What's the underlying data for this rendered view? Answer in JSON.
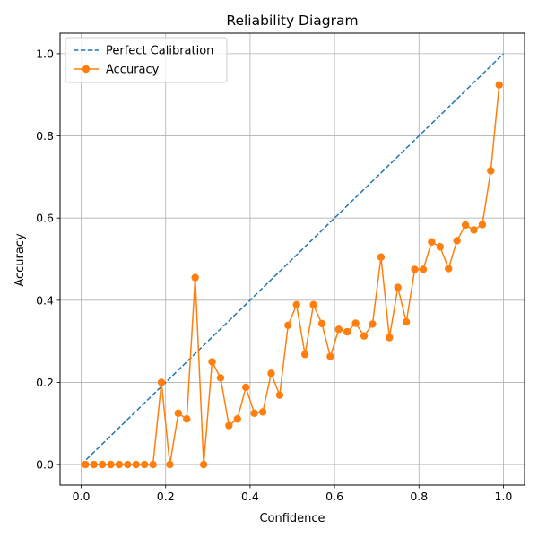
{
  "chart_data": {
    "type": "line",
    "title": "Reliability Diagram",
    "xlabel": "Confidence",
    "ylabel": "Accuracy",
    "xlim": [
      -0.05,
      1.05
    ],
    "ylim": [
      -0.05,
      1.05
    ],
    "xticks": [
      0.0,
      0.2,
      0.4,
      0.6,
      0.8,
      1.0
    ],
    "yticks": [
      0.0,
      0.2,
      0.4,
      0.6,
      0.8,
      1.0
    ],
    "xtick_labels": [
      "0.0",
      "0.2",
      "0.4",
      "0.6",
      "0.8",
      "1.0"
    ],
    "ytick_labels": [
      "0.0",
      "0.2",
      "0.4",
      "0.6",
      "0.8",
      "1.0"
    ],
    "grid": true,
    "legend_position": "top-left",
    "series": [
      {
        "name": "Perfect Calibration",
        "style": "dashed",
        "marker": "none",
        "color": "#1f77b4",
        "x": [
          0,
          1
        ],
        "y": [
          0,
          1
        ]
      },
      {
        "name": "Accuracy",
        "style": "solid",
        "marker": "circle",
        "color": "#ff7f0e",
        "x": [
          0.01,
          0.03,
          0.05,
          0.07,
          0.09,
          0.11,
          0.13,
          0.15,
          0.17,
          0.19,
          0.21,
          0.23,
          0.25,
          0.27,
          0.29,
          0.31,
          0.33,
          0.35,
          0.37,
          0.39,
          0.41,
          0.43,
          0.45,
          0.47,
          0.49,
          0.51,
          0.53,
          0.55,
          0.57,
          0.59,
          0.61,
          0.63,
          0.65,
          0.67,
          0.69,
          0.71,
          0.73,
          0.75,
          0.77,
          0.79,
          0.81,
          0.83,
          0.85,
          0.87,
          0.89,
          0.91,
          0.93,
          0.95,
          0.97,
          0.99
        ],
        "y": [
          0.0,
          0.0,
          0.0,
          0.0,
          0.0,
          0.0,
          0.0,
          0.0,
          0.0,
          0.2,
          0.0,
          0.125,
          0.111,
          0.455,
          0.0,
          0.25,
          0.211,
          0.095,
          0.111,
          0.188,
          0.125,
          0.128,
          0.222,
          0.169,
          0.339,
          0.389,
          0.268,
          0.389,
          0.343,
          0.263,
          0.329,
          0.323,
          0.344,
          0.313,
          0.342,
          0.505,
          0.309,
          0.431,
          0.347,
          0.475,
          0.475,
          0.542,
          0.53,
          0.477,
          0.545,
          0.583,
          0.571,
          0.584,
          0.715,
          0.924
        ]
      }
    ]
  }
}
